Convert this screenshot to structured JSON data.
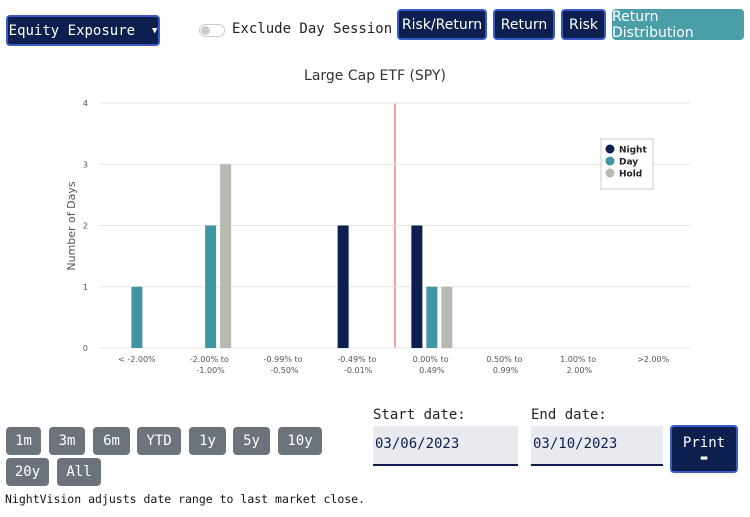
{
  "toolbar": {
    "dropdown": "Equity Exposure",
    "toggle_label": "Exclude Day Session",
    "buttons": [
      "Risk/Return",
      "Return",
      "Risk",
      "Return Distribution"
    ]
  },
  "chart_data": {
    "type": "bar",
    "title": "Large Cap ETF (SPY)",
    "y_label": "Number of Days",
    "categories": [
      "< -2.00%",
      "-2.00% to -1.00%",
      "-0.99% to -0.50%",
      "-0.49% to -0.01%",
      "0.00% to 0.49%",
      "0.50% to 0.99%",
      "1.00% to 2.00%",
      ">2.00%"
    ],
    "series": [
      {
        "name": "Night",
        "color": "#0d1f4f",
        "values": [
          0,
          0,
          0,
          2,
          2,
          0,
          0,
          0
        ]
      },
      {
        "name": "Day",
        "color": "#3f95a3",
        "values": [
          1,
          2,
          0,
          0,
          1,
          0,
          0,
          0
        ]
      },
      {
        "name": "Hold",
        "color": "#b8b9b0",
        "values": [
          0,
          3,
          0,
          0,
          1,
          0,
          0,
          0
        ]
      }
    ],
    "ylim": [
      0,
      4
    ],
    "yticks": [
      0,
      1,
      2,
      3,
      4
    ],
    "grid": true,
    "legend": "top-right"
  },
  "range_buttons": [
    "1m",
    "3m",
    "6m",
    "YTD",
    "1y",
    "5y",
    "10y",
    "20y",
    "All"
  ],
  "note": "NightVision adjusts date range to last market close.",
  "start_date": {
    "label": "Start date:",
    "value": "03/06/2023"
  },
  "end_date": {
    "label": "End date:",
    "value": "03/10/2023"
  },
  "print": "Print"
}
